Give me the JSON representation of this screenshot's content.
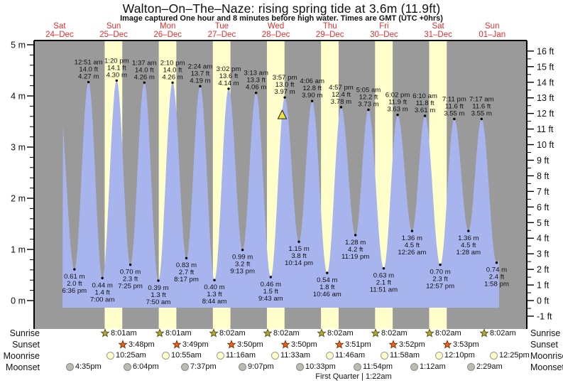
{
  "title": "Walton–On–The–Naze: rising  spring tide at 3.6m (11.9ft)",
  "subtitle": "Image captured One hour and 8 minutes before high water. Times are GMT (UTC +0hrs)",
  "days": [
    {
      "name": "Sat",
      "date": "24–Dec"
    },
    {
      "name": "Sun",
      "date": "25–Dec"
    },
    {
      "name": "Mon",
      "date": "26–Dec"
    },
    {
      "name": "Tue",
      "date": "27–Dec"
    },
    {
      "name": "Wed",
      "date": "28–Dec"
    },
    {
      "name": "Thu",
      "date": "29–Dec"
    },
    {
      "name": "Fri",
      "date": "30–Dec"
    },
    {
      "name": "Sat",
      "date": "31–Dec"
    },
    {
      "name": "Sun",
      "date": "01–Jan"
    }
  ],
  "colors": {
    "plot_background": "#9a9a9a",
    "day_band": "#ffffcc",
    "tide_fill": "#a8b4ee",
    "day_label": "#e03030",
    "marker_fill": "#efe23a",
    "sunrise_star": "#b5a83a",
    "sunset_star": "#e2641f",
    "moonrise_circle": "#ffffc8",
    "moonset_circle": "#bcbcb0"
  },
  "chart_data": {
    "type": "area",
    "title": "Tide height curve, Walton-On-The-Naze, 24-Dec to 01-Jan",
    "y_axis_left": {
      "unit": "m",
      "range": [
        0,
        5
      ],
      "tick_labels": [
        "0 m",
        "1 m",
        "2 m",
        "3 m",
        "4 m",
        "5 m"
      ],
      "minor_step": 0.2
    },
    "y_axis_right": {
      "unit": "ft",
      "range": [
        -1,
        16
      ],
      "minor_step": 0.5
    },
    "daylight": {
      "start_h": 8.03,
      "end_h": 15.84,
      "band_days": [
        1,
        2,
        3,
        4,
        5,
        6,
        7
      ]
    },
    "virtual_start": {
      "t": 0.47,
      "m": 4.2
    },
    "virtual_end": {
      "t": 9.1,
      "m": 3.5
    },
    "capture_marker": {
      "shape": "triangle-up",
      "t": 4.617,
      "m_top": 3.72
    },
    "highs": [
      {
        "time": "12:51 am",
        "ft": "14.0 ft",
        "m": "4.27 m",
        "mv": 4.27,
        "t": 1.0354
      },
      {
        "time": "1:20 pm",
        "ft": "14.1 ft",
        "m": "4.30 m",
        "mv": 4.3,
        "t": 1.5556
      },
      {
        "time": "1:37 am",
        "ft": "14.0 ft",
        "m": "4.26 m",
        "mv": 4.26,
        "t": 2.0674
      },
      {
        "time": "2:10 pm",
        "ft": "14.0 ft",
        "m": "4.26 m",
        "mv": 4.26,
        "t": 2.5903
      },
      {
        "time": "2:24 am",
        "ft": "13.7 ft",
        "m": "4.19 m",
        "mv": 4.19,
        "t": 3.1
      },
      {
        "time": "3:02 pm",
        "ft": "13.6 ft",
        "m": "4.14 m",
        "mv": 4.14,
        "t": 3.6264
      },
      {
        "time": "3:13 am",
        "ft": "13.3 ft",
        "m": "4.06 m",
        "mv": 4.06,
        "t": 4.134
      },
      {
        "time": "3:57 pm",
        "ft": "13.0 ft",
        "m": "3.97 m",
        "mv": 3.97,
        "t": 4.6646
      },
      {
        "time": "4:06 am",
        "ft": "12.8 ft",
        "m": "3.90 m",
        "mv": 3.9,
        "t": 5.1708
      },
      {
        "time": "4:57 pm",
        "ft": "12.4 ft",
        "m": "3.78 m",
        "mv": 3.78,
        "t": 5.7063
      },
      {
        "time": "5:05 am",
        "ft": "12.2 ft",
        "m": "3.73 m",
        "mv": 3.73,
        "t": 6.2118
      },
      {
        "time": "6:02 pm",
        "ft": "11.9 ft",
        "m": "3.63 m",
        "mv": 3.63,
        "t": 6.7514
      },
      {
        "time": "6:10 am",
        "ft": "11.8 ft",
        "m": "3.61 m",
        "mv": 3.61,
        "t": 7.257
      },
      {
        "time": "7:11 pm",
        "ft": "11.6 ft",
        "m": "3.55 m",
        "mv": 3.55,
        "t": 7.7993
      },
      {
        "time": "7:17 am",
        "ft": "11.6 ft",
        "m": "3.55 m",
        "mv": 3.55,
        "t": 8.3035
      }
    ],
    "lows": [
      {
        "m": "0.61 m",
        "ft": "2.0 ft",
        "time": "6:36 pm",
        "mv": 0.61,
        "t": 0.775
      },
      {
        "m": "0.44 m",
        "ft": "1.4 ft",
        "time": "7:00 am",
        "mv": 0.44,
        "t": 1.2917
      },
      {
        "m": "0.70 m",
        "ft": "2.3 ft",
        "time": "7:25 pm",
        "mv": 0.7,
        "t": 1.809
      },
      {
        "m": "0.39 m",
        "ft": "1.3 ft",
        "time": "7:50 am",
        "mv": 0.39,
        "t": 2.3264
      },
      {
        "m": "0.83 m",
        "ft": "2.7 ft",
        "time": "8:17 pm",
        "mv": 0.83,
        "t": 2.8451
      },
      {
        "m": "0.40 m",
        "ft": "1.3 ft",
        "time": "8:44 am",
        "mv": 0.4,
        "t": 3.3639
      },
      {
        "m": "0.99 m",
        "ft": "3.2 ft",
        "time": "9:13 pm",
        "mv": 0.99,
        "t": 3.884
      },
      {
        "m": "0.46 m",
        "ft": "1.5 ft",
        "time": "9:43 am",
        "mv": 0.46,
        "t": 4.4049
      },
      {
        "m": "1.15 m",
        "ft": "3.8 ft",
        "time": "10:14 pm",
        "mv": 1.15,
        "t": 4.9264
      },
      {
        "m": "0.54 m",
        "ft": "1.8 ft",
        "time": "10:46 am",
        "mv": 0.54,
        "t": 5.4486
      },
      {
        "m": "1.28 m",
        "ft": "4.2 ft",
        "time": "11:19 pm",
        "mv": 1.28,
        "t": 5.9715
      },
      {
        "m": "0.63 m",
        "ft": "2.1 ft",
        "time": "11:51 am",
        "mv": 0.63,
        "t": 6.4938
      },
      {
        "m": "1.36 m",
        "ft": "4.5 ft",
        "time": "12:26 am",
        "mv": 1.36,
        "t": 7.0181
      },
      {
        "m": "0.70 m",
        "ft": "2.3 ft",
        "time": "12:57 pm",
        "mv": 0.7,
        "t": 7.5396
      },
      {
        "m": "1.36 m",
        "ft": "4.5 ft",
        "time": "1:28 am",
        "mv": 1.36,
        "t": 8.0611
      },
      {
        "m": "0.74 m",
        "ft": "2.4 ft",
        "time": "1:58 pm",
        "mv": 0.74,
        "t": 8.5819
      }
    ]
  },
  "astro": {
    "rows": [
      {
        "label": "Sunrise",
        "icon": "sunrise-star",
        "events": [
          {
            "time": "8:01am",
            "t": 1.3345
          },
          {
            "time": "8:01am",
            "t": 2.3345
          },
          {
            "time": "8:02am",
            "t": 3.3347
          },
          {
            "time": "8:02am",
            "t": 4.3347
          },
          {
            "time": "8:02am",
            "t": 5.3347
          },
          {
            "time": "8:02am",
            "t": 6.3347
          },
          {
            "time": "8:02am",
            "t": 7.3347
          },
          {
            "time": "8:02am",
            "t": 8.3347
          }
        ]
      },
      {
        "label": "Sunset",
        "icon": "sunset-star",
        "events": [
          {
            "time": "3:48pm",
            "t": 1.6583
          },
          {
            "time": "3:49pm",
            "t": 2.659
          },
          {
            "time": "3:50pm",
            "t": 3.6597
          },
          {
            "time": "3:50pm",
            "t": 4.6597
          },
          {
            "time": "3:51pm",
            "t": 5.6604
          },
          {
            "time": "3:52pm",
            "t": 6.6611
          },
          {
            "time": "3:53pm",
            "t": 7.6618
          }
        ]
      },
      {
        "label": "Moonrise",
        "icon": "moonrise-circle",
        "events": [
          {
            "time": "10:25am",
            "t": 1.434
          },
          {
            "time": "10:55am",
            "t": 2.4549
          },
          {
            "time": "11:16am",
            "t": 3.4694
          },
          {
            "time": "11:33am",
            "t": 4.4813
          },
          {
            "time": "11:46am",
            "t": 5.4903
          },
          {
            "time": "11:58am",
            "t": 6.4986
          },
          {
            "time": "12:10pm",
            "t": 7.5069
          },
          {
            "time": "12:25pm",
            "t": 8.5174
          }
        ]
      },
      {
        "label": "Moonset",
        "icon": "moonset-circle",
        "events": [
          {
            "time": "4:35pm",
            "t": 0.691
          },
          {
            "time": "6:04pm",
            "t": 1.7528
          },
          {
            "time": "7:37pm",
            "t": 2.8174
          },
          {
            "time": "9:07pm",
            "t": 3.8799
          },
          {
            "time": "10:33pm",
            "t": 4.9396
          },
          {
            "time": "11:54pm",
            "t": 5.9958
          },
          {
            "time": "1:12am",
            "t": 7.05
          },
          {
            "time": "2:29am",
            "t": 8.1035
          }
        ]
      }
    ],
    "caption": "First Quarter | 1:22am"
  }
}
